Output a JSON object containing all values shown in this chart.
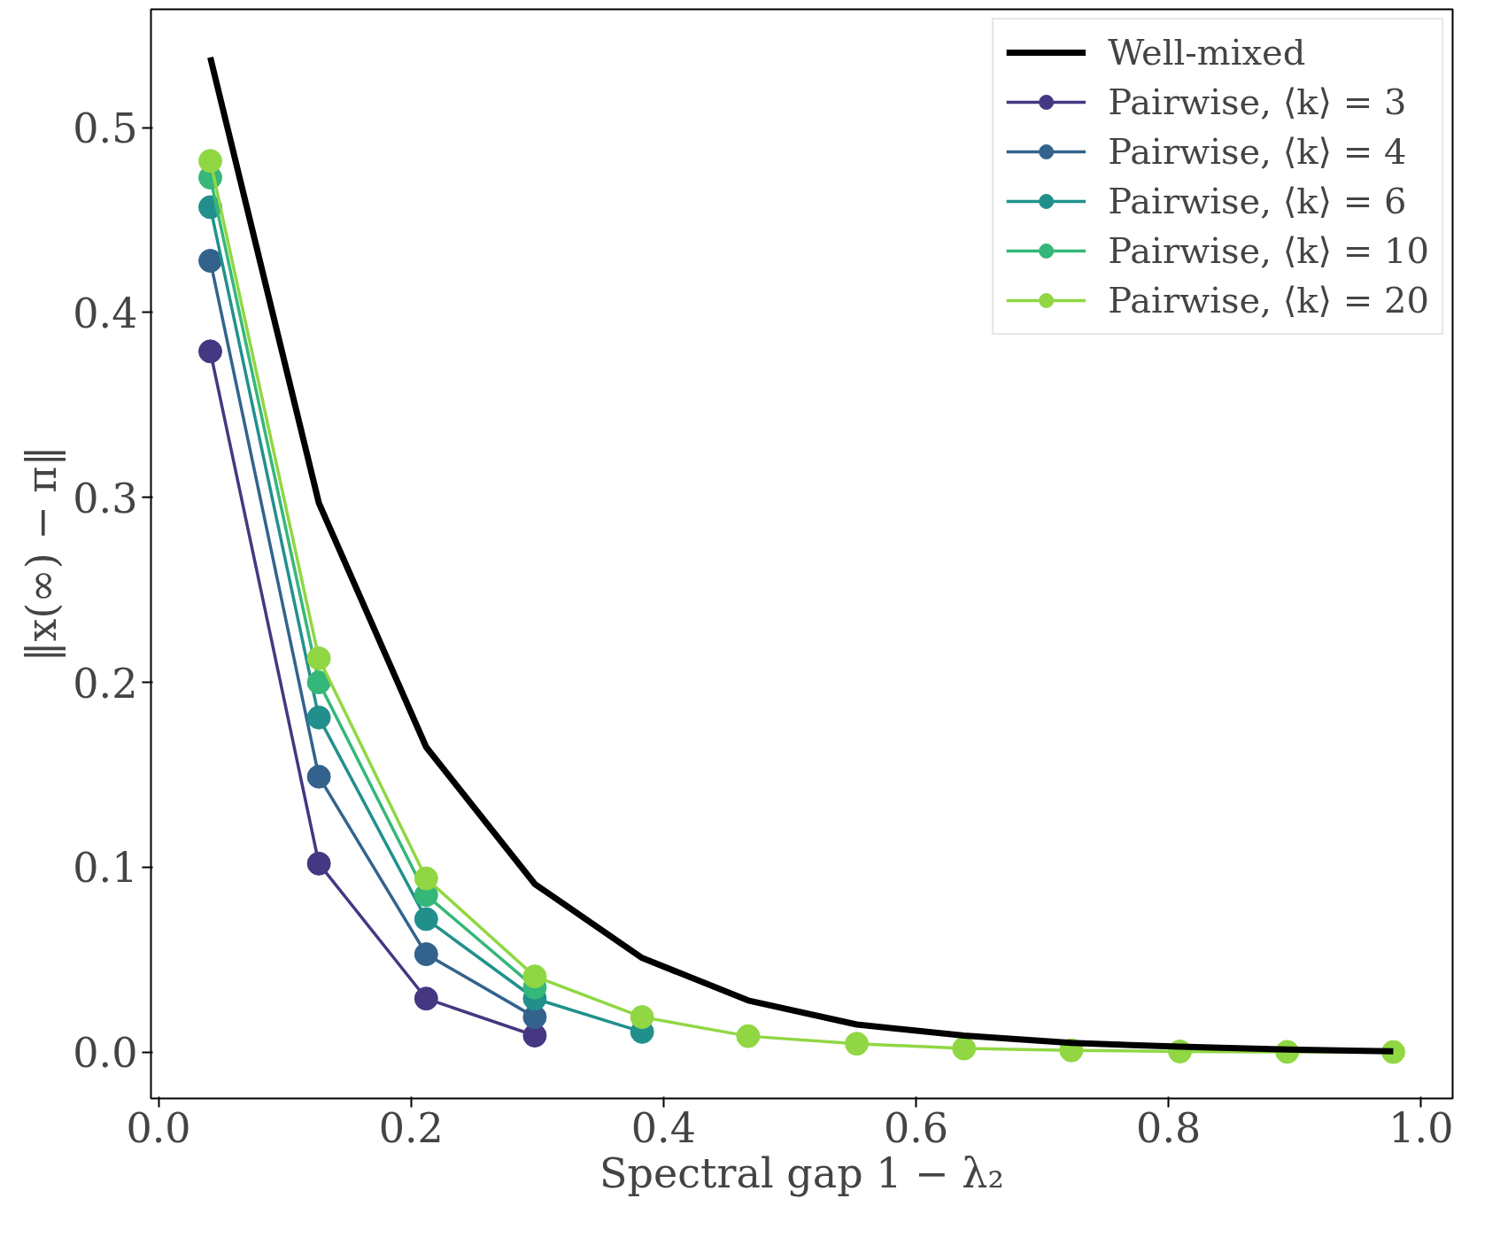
{
  "chart_data": {
    "type": "line",
    "xlabel": "Spectral gap 1 − λ₂",
    "ylabel": "‖x(∞) − π‖",
    "x": [
      0.041,
      0.127,
      0.212,
      0.298,
      0.383,
      0.467,
      0.553,
      0.638,
      0.723,
      0.809,
      0.894,
      0.978
    ],
    "xlim": [
      -0.006,
      1.025
    ],
    "ylim": [
      -0.025,
      0.564
    ],
    "xticks": [
      {
        "value": 0,
        "label": "0.0"
      },
      0.2,
      0.4,
      0.6,
      0.8,
      {
        "value": 1,
        "label": "1.0"
      }
    ],
    "yticks": [
      {
        "value": 0,
        "label": "0.0"
      },
      0.1,
      0.2,
      0.3,
      0.4,
      0.5
    ],
    "grid": false,
    "legend": "top right",
    "marker": "circle",
    "series": [
      {
        "name": "Well-mixed",
        "color": "#000000",
        "marker": "none",
        "values": [
          0.538,
          0.297,
          0.165,
          0.091,
          0.051,
          0.028,
          0.015,
          0.009,
          0.005,
          0.003,
          0.0015,
          0.0005
        ]
      },
      {
        "name": "Pairwise, ⟨k⟩ = 3",
        "color": "#453781",
        "values": [
          0.379,
          0.102,
          0.029,
          0.009,
          null,
          null,
          null,
          null,
          null,
          null,
          null,
          null
        ]
      },
      {
        "name": "Pairwise, ⟨k⟩ = 4",
        "color": "#33638d",
        "values": [
          0.428,
          0.149,
          0.053,
          0.019,
          null,
          null,
          null,
          null,
          null,
          null,
          null,
          null
        ]
      },
      {
        "name": "Pairwise, ⟨k⟩ = 6",
        "color": "#21908d",
        "values": [
          0.457,
          0.181,
          0.072,
          0.029,
          0.011,
          null,
          null,
          null,
          null,
          null,
          null,
          null
        ]
      },
      {
        "name": "Pairwise, ⟨k⟩ = 10",
        "color": "#35b779",
        "values": [
          0.473,
          0.2,
          0.085,
          0.035,
          null,
          null,
          null,
          null,
          null,
          null,
          null,
          null
        ]
      },
      {
        "name": "Pairwise, ⟨k⟩ = 20",
        "color": "#90d743",
        "values": [
          0.482,
          0.213,
          0.094,
          0.041,
          0.019,
          0.0087,
          0.0046,
          0.002,
          0.001,
          0.0004,
          0.0002,
          0.0001
        ]
      }
    ]
  }
}
